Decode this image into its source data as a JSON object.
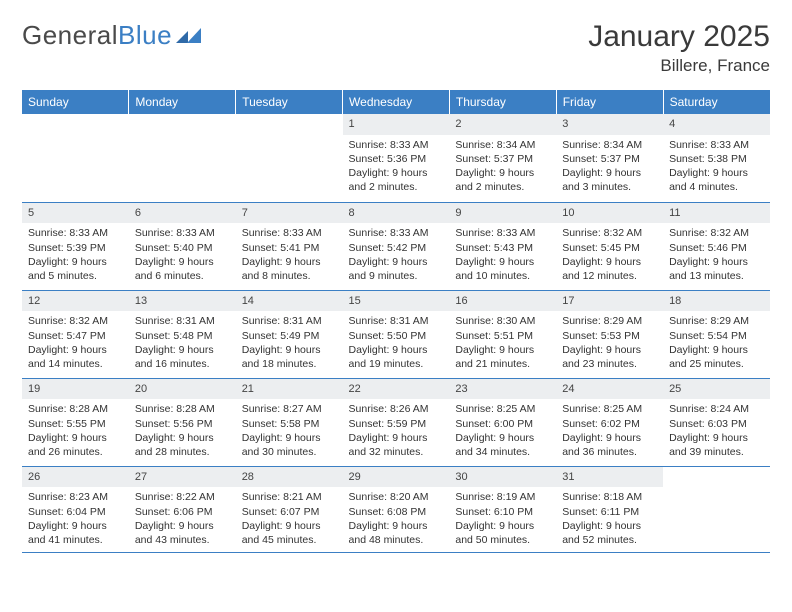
{
  "logo": {
    "text1": "General",
    "text2": "Blue"
  },
  "title": "January 2025",
  "subtitle": "Billere, France",
  "colors": {
    "header_bg": "#3b7fc4",
    "header_text": "#ffffff",
    "daynum_bg": "#eceef0",
    "row_border": "#3b7fc4",
    "body_text": "#333333",
    "page_bg": "#ffffff"
  },
  "day_headers": [
    "Sunday",
    "Monday",
    "Tuesday",
    "Wednesday",
    "Thursday",
    "Friday",
    "Saturday"
  ],
  "weeks": [
    [
      null,
      null,
      null,
      {
        "n": "1",
        "sunrise": "8:33 AM",
        "sunset": "5:36 PM",
        "dl_h": 9,
        "dl_m": 2
      },
      {
        "n": "2",
        "sunrise": "8:34 AM",
        "sunset": "5:37 PM",
        "dl_h": 9,
        "dl_m": 2
      },
      {
        "n": "3",
        "sunrise": "8:34 AM",
        "sunset": "5:37 PM",
        "dl_h": 9,
        "dl_m": 3
      },
      {
        "n": "4",
        "sunrise": "8:33 AM",
        "sunset": "5:38 PM",
        "dl_h": 9,
        "dl_m": 4
      }
    ],
    [
      {
        "n": "5",
        "sunrise": "8:33 AM",
        "sunset": "5:39 PM",
        "dl_h": 9,
        "dl_m": 5
      },
      {
        "n": "6",
        "sunrise": "8:33 AM",
        "sunset": "5:40 PM",
        "dl_h": 9,
        "dl_m": 6
      },
      {
        "n": "7",
        "sunrise": "8:33 AM",
        "sunset": "5:41 PM",
        "dl_h": 9,
        "dl_m": 8
      },
      {
        "n": "8",
        "sunrise": "8:33 AM",
        "sunset": "5:42 PM",
        "dl_h": 9,
        "dl_m": 9
      },
      {
        "n": "9",
        "sunrise": "8:33 AM",
        "sunset": "5:43 PM",
        "dl_h": 9,
        "dl_m": 10
      },
      {
        "n": "10",
        "sunrise": "8:32 AM",
        "sunset": "5:45 PM",
        "dl_h": 9,
        "dl_m": 12
      },
      {
        "n": "11",
        "sunrise": "8:32 AM",
        "sunset": "5:46 PM",
        "dl_h": 9,
        "dl_m": 13
      }
    ],
    [
      {
        "n": "12",
        "sunrise": "8:32 AM",
        "sunset": "5:47 PM",
        "dl_h": 9,
        "dl_m": 14
      },
      {
        "n": "13",
        "sunrise": "8:31 AM",
        "sunset": "5:48 PM",
        "dl_h": 9,
        "dl_m": 16
      },
      {
        "n": "14",
        "sunrise": "8:31 AM",
        "sunset": "5:49 PM",
        "dl_h": 9,
        "dl_m": 18
      },
      {
        "n": "15",
        "sunrise": "8:31 AM",
        "sunset": "5:50 PM",
        "dl_h": 9,
        "dl_m": 19
      },
      {
        "n": "16",
        "sunrise": "8:30 AM",
        "sunset": "5:51 PM",
        "dl_h": 9,
        "dl_m": 21
      },
      {
        "n": "17",
        "sunrise": "8:29 AM",
        "sunset": "5:53 PM",
        "dl_h": 9,
        "dl_m": 23
      },
      {
        "n": "18",
        "sunrise": "8:29 AM",
        "sunset": "5:54 PM",
        "dl_h": 9,
        "dl_m": 25
      }
    ],
    [
      {
        "n": "19",
        "sunrise": "8:28 AM",
        "sunset": "5:55 PM",
        "dl_h": 9,
        "dl_m": 26
      },
      {
        "n": "20",
        "sunrise": "8:28 AM",
        "sunset": "5:56 PM",
        "dl_h": 9,
        "dl_m": 28
      },
      {
        "n": "21",
        "sunrise": "8:27 AM",
        "sunset": "5:58 PM",
        "dl_h": 9,
        "dl_m": 30
      },
      {
        "n": "22",
        "sunrise": "8:26 AM",
        "sunset": "5:59 PM",
        "dl_h": 9,
        "dl_m": 32
      },
      {
        "n": "23",
        "sunrise": "8:25 AM",
        "sunset": "6:00 PM",
        "dl_h": 9,
        "dl_m": 34
      },
      {
        "n": "24",
        "sunrise": "8:25 AM",
        "sunset": "6:02 PM",
        "dl_h": 9,
        "dl_m": 36
      },
      {
        "n": "25",
        "sunrise": "8:24 AM",
        "sunset": "6:03 PM",
        "dl_h": 9,
        "dl_m": 39
      }
    ],
    [
      {
        "n": "26",
        "sunrise": "8:23 AM",
        "sunset": "6:04 PM",
        "dl_h": 9,
        "dl_m": 41
      },
      {
        "n": "27",
        "sunrise": "8:22 AM",
        "sunset": "6:06 PM",
        "dl_h": 9,
        "dl_m": 43
      },
      {
        "n": "28",
        "sunrise": "8:21 AM",
        "sunset": "6:07 PM",
        "dl_h": 9,
        "dl_m": 45
      },
      {
        "n": "29",
        "sunrise": "8:20 AM",
        "sunset": "6:08 PM",
        "dl_h": 9,
        "dl_m": 48
      },
      {
        "n": "30",
        "sunrise": "8:19 AM",
        "sunset": "6:10 PM",
        "dl_h": 9,
        "dl_m": 50
      },
      {
        "n": "31",
        "sunrise": "8:18 AM",
        "sunset": "6:11 PM",
        "dl_h": 9,
        "dl_m": 52
      },
      null
    ]
  ],
  "labels": {
    "sunrise": "Sunrise:",
    "sunset": "Sunset:",
    "daylight_prefix": "Daylight:",
    "hours_word": "hours",
    "and_word": "and",
    "minutes_word": "minutes."
  }
}
